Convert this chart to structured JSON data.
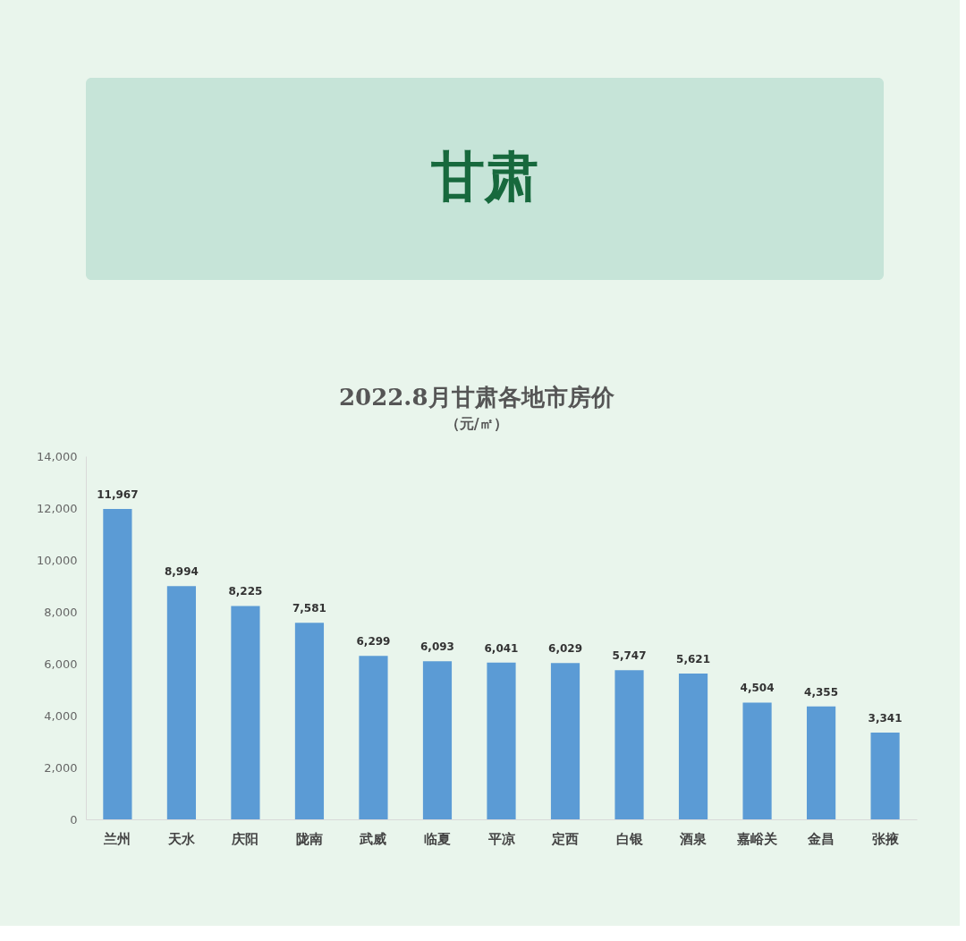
{
  "chart_data": {
    "type": "bar",
    "title": "甘肃",
    "subtitle": "2022.8月甘肃各地市房价",
    "annotations": [
      "（元/㎡）"
    ],
    "categories": [
      "兰州",
      "天水",
      "庆阳",
      "陇南",
      "武威",
      "临夏",
      "平凉",
      "定西",
      "白银",
      "酒泉",
      "嘉峪关",
      "金昌",
      "张掖"
    ],
    "values": [
      11967,
      8994,
      8225,
      7581,
      6299,
      6093,
      6041,
      6029,
      5747,
      5621,
      4504,
      4355,
      3341
    ],
    "value_labels": [
      "11,967",
      "8,994",
      "8,225",
      "7,581",
      "6,299",
      "6,093",
      "6,041",
      "6,029",
      "5,747",
      "5,621",
      "4,504",
      "4,355",
      "3,341"
    ],
    "color": "#5b9bd5",
    "ylim": [
      0,
      14000
    ],
    "yticks": [
      0,
      {
        "value": 2000,
        "label": "2,000"
      },
      {
        "value": 4000,
        "label": "4,000"
      },
      {
        "value": 6000,
        "label": "6,000"
      },
      {
        "value": 8000,
        "label": "8,000"
      },
      {
        "value": 10000,
        "label": "10,000"
      },
      {
        "value": 12000,
        "label": "12,000"
      },
      {
        "value": 14000,
        "label": "14,000"
      }
    ],
    "grid": false
  }
}
